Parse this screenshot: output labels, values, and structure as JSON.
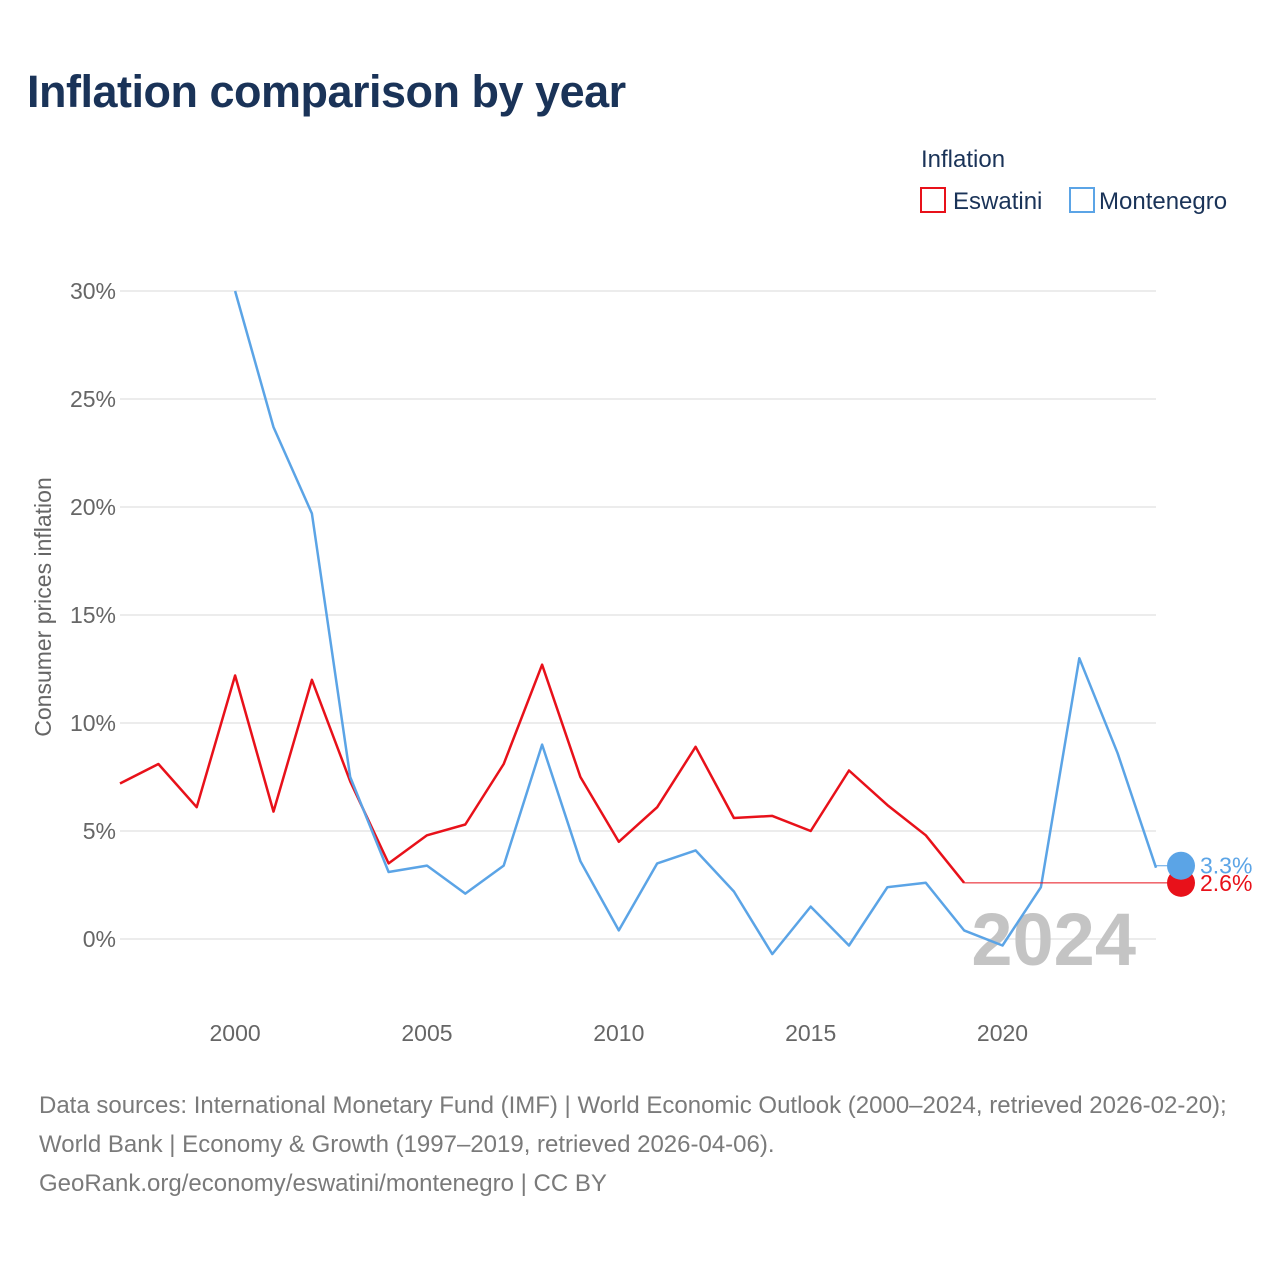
{
  "title": "Inflation comparison by year",
  "legend": {
    "title": "Inflation",
    "items": [
      {
        "name": "Eswatini",
        "color": "#e8111a"
      },
      {
        "name": "Montenegro",
        "color": "#5ba4e6"
      }
    ]
  },
  "footer": {
    "sources": "Data sources: International Monetary Fund (IMF) | World Economic Outlook (2000–2024, retrieved 2026-02-20); World Bank | Economy & Growth (1997–2019, retrieved 2026-04-06).",
    "credit": "GeoRank.org/economy/eswatini/montenegro | CC BY"
  },
  "chart_data": {
    "type": "line",
    "title": "Inflation comparison by year",
    "xlabel": "",
    "ylabel": "Consumer prices inflation",
    "xlim": [
      1997,
      2024
    ],
    "ylim": [
      -2,
      30
    ],
    "x_ticks": [
      2000,
      2005,
      2010,
      2015,
      2020
    ],
    "y_ticks": [
      0,
      5,
      10,
      15,
      20,
      25,
      30
    ],
    "y_tick_labels": [
      "0%",
      "5%",
      "10%",
      "15%",
      "20%",
      "25%",
      "30%"
    ],
    "grid": true,
    "year_label": "2024",
    "series": [
      {
        "name": "Eswatini",
        "color": "#e8111a",
        "x": [
          1997,
          1998,
          1999,
          2000,
          2001,
          2002,
          2003,
          2004,
          2005,
          2006,
          2007,
          2008,
          2009,
          2010,
          2011,
          2012,
          2013,
          2014,
          2015,
          2016,
          2017,
          2018,
          2019
        ],
        "values": [
          7.2,
          8.1,
          6.1,
          12.2,
          5.9,
          12.0,
          7.3,
          3.5,
          4.8,
          5.3,
          8.1,
          12.7,
          7.5,
          4.5,
          6.1,
          8.9,
          5.6,
          5.7,
          5.0,
          7.8,
          6.2,
          4.8,
          2.6
        ],
        "end_value": 2.6,
        "end_label": "2.6%"
      },
      {
        "name": "Montenegro",
        "color": "#5ba4e6",
        "x": [
          2000,
          2001,
          2002,
          2003,
          2004,
          2005,
          2006,
          2007,
          2008,
          2009,
          2010,
          2011,
          2012,
          2013,
          2014,
          2015,
          2016,
          2017,
          2018,
          2019,
          2020,
          2021,
          2022,
          2023,
          2024
        ],
        "values": [
          30.0,
          23.7,
          19.7,
          7.5,
          3.1,
          3.4,
          2.1,
          3.4,
          9.0,
          3.6,
          0.4,
          3.5,
          4.1,
          2.2,
          -0.7,
          1.5,
          -0.3,
          2.4,
          2.6,
          0.4,
          -0.3,
          2.4,
          13.0,
          8.6,
          3.3
        ],
        "end_value": 3.3,
        "end_label": "3.3%"
      }
    ]
  }
}
